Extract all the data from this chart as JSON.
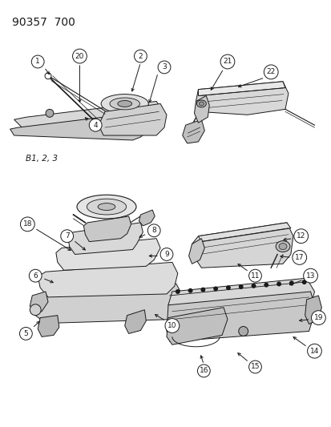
{
  "title": "90357  700",
  "background_color": "#ffffff",
  "line_color": "#1a1a1a",
  "label_fontsize": 7.0,
  "figsize": [
    4.14,
    5.33
  ],
  "dpi": 100,
  "note_text": "B1, 2, 3"
}
